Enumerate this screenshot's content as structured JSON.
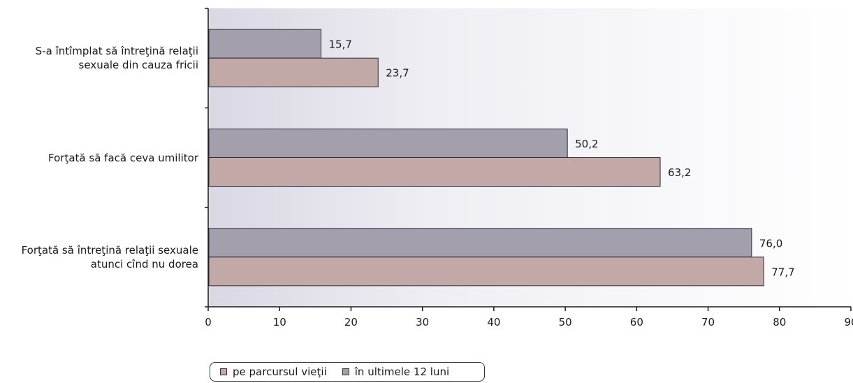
{
  "chart_data": {
    "type": "bar",
    "orientation": "horizontal",
    "categories": [
      "S-a întîmplat să întreţină relaţii\nsexuale din cauza fricii",
      "Forţată să facă ceva umilitor",
      "Forţată să întreţină relaţii sexuale\natunci cînd nu dorea"
    ],
    "series": [
      {
        "name": "în ultimele 12 luni",
        "values": [
          15.7,
          50.2,
          76.0
        ],
        "labels": [
          "15,7",
          "50,2",
          "76,0"
        ],
        "color": "#a39fad"
      },
      {
        "name": "pe parcursul vieţii",
        "values": [
          23.7,
          63.2,
          77.7
        ],
        "labels": [
          "23,7",
          "63,2",
          "77,7"
        ],
        "color": "#c2a8a6"
      }
    ],
    "xlim": [
      0,
      90
    ],
    "xticks": [
      "0",
      "10",
      "20",
      "30",
      "40",
      "50",
      "60",
      "70",
      "80",
      "90"
    ],
    "legend": {
      "position": "bottom-left",
      "items": [
        {
          "label": "pe parcursul vieţii",
          "color": "#c2a8a6"
        },
        {
          "label": "în ultimele 12 luni",
          "color": "#a39fad"
        }
      ]
    },
    "grid": false
  }
}
